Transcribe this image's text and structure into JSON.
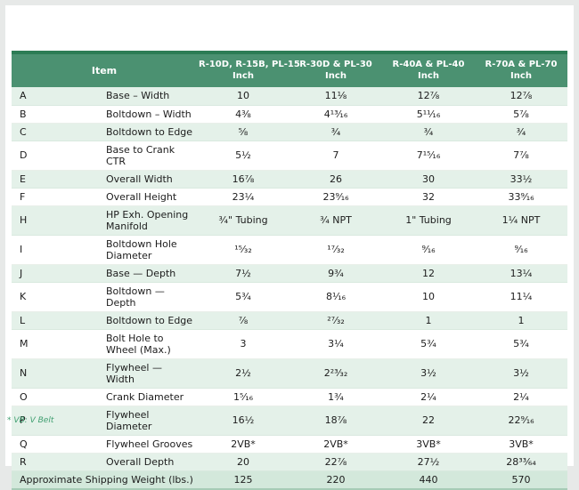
{
  "colors": {
    "accent_line": "#2c7c55",
    "header_bg": "#4b9171",
    "row_tint": "#e4f1e9",
    "summary_row_bg": "#d3e8db",
    "footnote_green": "#3e9e6f"
  },
  "table": {
    "item_header": "Item",
    "unit_label": "Inch",
    "columns": [
      "R-10D, R-15B, PL-15",
      "R-30D & PL-30",
      "R-40A & PL-40",
      "R-70A & PL-70"
    ],
    "rows": [
      {
        "key": "A",
        "item": "Base – Width",
        "values": [
          "10",
          "11⅛",
          "12⅞",
          "12⅞"
        ]
      },
      {
        "key": "B",
        "item": "Boltdown – Width",
        "values": [
          "4⅜",
          "4¹³⁄₁₆",
          "5¹¹⁄₁₆",
          "5⅞"
        ]
      },
      {
        "key": "C",
        "item": "Boltdown to Edge",
        "values": [
          "⅝",
          "¾",
          "¾",
          "¾"
        ]
      },
      {
        "key": "D",
        "item": "Base to Crank CTR",
        "values": [
          "5½",
          "7",
          "7¹⁵⁄₁₆",
          "7⅞"
        ]
      },
      {
        "key": "E",
        "item": "Overall Width",
        "values": [
          "16⅞",
          "26",
          "30",
          "33½"
        ]
      },
      {
        "key": "F",
        "item": "Overall Height",
        "values": [
          "23¼",
          "23⁹⁄₁₆",
          "32",
          "33⁹⁄₁₆"
        ]
      },
      {
        "key": "H",
        "item": "HP Exh. Opening Manifold",
        "values": [
          "¾\" Tubing",
          "¾ NPT",
          "1\" Tubing",
          "1¼ NPT"
        ]
      },
      {
        "key": "I",
        "item": "Boltdown Hole Diameter",
        "values": [
          "¹⁵⁄₃₂",
          "¹⁷⁄₃₂",
          "⁹⁄₁₆",
          "⁹⁄₁₆"
        ]
      },
      {
        "key": "J",
        "item": "Base — Depth",
        "values": [
          "7½",
          "9¾",
          "12",
          "13¼"
        ]
      },
      {
        "key": "K",
        "item": "Boltdown — Depth",
        "values": [
          "5¾",
          "8¹⁄₁₆",
          "10",
          "11¼"
        ]
      },
      {
        "key": "L",
        "item": "Boltdown to Edge",
        "values": [
          "⅞",
          "²⁷⁄₃₂",
          "1",
          "1"
        ]
      },
      {
        "key": "M",
        "item": "Bolt Hole to Wheel (Max.)",
        "values": [
          "3",
          "3¼",
          "5¾",
          "5¾"
        ]
      },
      {
        "key": "N",
        "item": "Flywheel — Width",
        "values": [
          "2½",
          "2²³⁄₃₂",
          "3½",
          "3½"
        ]
      },
      {
        "key": "O",
        "item": "Crank Diameter",
        "values": [
          "1⁵⁄₁₆",
          "1¾",
          "2¼",
          "2¼"
        ]
      },
      {
        "key": "P",
        "item": "Flywheel Diameter",
        "values": [
          "16½",
          "18⅞",
          "22",
          "22⁹⁄₁₆"
        ]
      },
      {
        "key": "Q",
        "item": "Flywheel Grooves",
        "values": [
          "2VB*",
          "2VB*",
          "3VB*",
          "3VB*"
        ]
      },
      {
        "key": "R",
        "item": "Overall Depth",
        "values": [
          "20",
          "22⅞",
          "27½",
          "28³³⁄₆₄"
        ]
      }
    ],
    "summary_row": {
      "item": "Approximate Shipping Weight (lbs.)",
      "values": [
        "125",
        "220",
        "440",
        "570"
      ]
    }
  },
  "footnote": "* VB: V Belt"
}
